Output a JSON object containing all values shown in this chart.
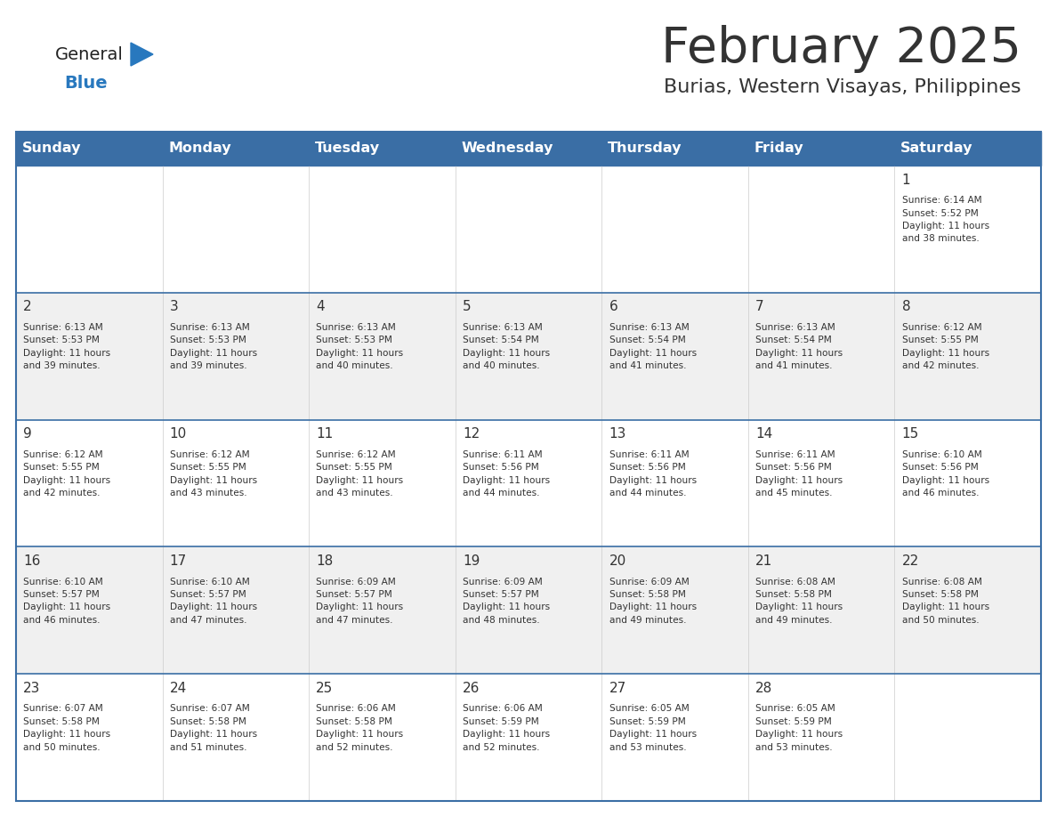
{
  "title": "February 2025",
  "subtitle": "Burias, Western Visayas, Philippines",
  "header_color": "#3A6EA5",
  "header_text_color": "#FFFFFF",
  "days_of_week": [
    "Sunday",
    "Monday",
    "Tuesday",
    "Wednesday",
    "Thursday",
    "Friday",
    "Saturday"
  ],
  "background_color": "#FFFFFF",
  "cell_alt_color": "#F0F0F0",
  "divider_color": "#3A6EA5",
  "text_color": "#333333",
  "logo_general_color": "#222222",
  "logo_blue_color": "#2878BE",
  "calendar": [
    [
      {
        "day": null,
        "info": null
      },
      {
        "day": null,
        "info": null
      },
      {
        "day": null,
        "info": null
      },
      {
        "day": null,
        "info": null
      },
      {
        "day": null,
        "info": null
      },
      {
        "day": null,
        "info": null
      },
      {
        "day": 1,
        "info": "Sunrise: 6:14 AM\nSunset: 5:52 PM\nDaylight: 11 hours\nand 38 minutes."
      }
    ],
    [
      {
        "day": 2,
        "info": "Sunrise: 6:13 AM\nSunset: 5:53 PM\nDaylight: 11 hours\nand 39 minutes."
      },
      {
        "day": 3,
        "info": "Sunrise: 6:13 AM\nSunset: 5:53 PM\nDaylight: 11 hours\nand 39 minutes."
      },
      {
        "day": 4,
        "info": "Sunrise: 6:13 AM\nSunset: 5:53 PM\nDaylight: 11 hours\nand 40 minutes."
      },
      {
        "day": 5,
        "info": "Sunrise: 6:13 AM\nSunset: 5:54 PM\nDaylight: 11 hours\nand 40 minutes."
      },
      {
        "day": 6,
        "info": "Sunrise: 6:13 AM\nSunset: 5:54 PM\nDaylight: 11 hours\nand 41 minutes."
      },
      {
        "day": 7,
        "info": "Sunrise: 6:13 AM\nSunset: 5:54 PM\nDaylight: 11 hours\nand 41 minutes."
      },
      {
        "day": 8,
        "info": "Sunrise: 6:12 AM\nSunset: 5:55 PM\nDaylight: 11 hours\nand 42 minutes."
      }
    ],
    [
      {
        "day": 9,
        "info": "Sunrise: 6:12 AM\nSunset: 5:55 PM\nDaylight: 11 hours\nand 42 minutes."
      },
      {
        "day": 10,
        "info": "Sunrise: 6:12 AM\nSunset: 5:55 PM\nDaylight: 11 hours\nand 43 minutes."
      },
      {
        "day": 11,
        "info": "Sunrise: 6:12 AM\nSunset: 5:55 PM\nDaylight: 11 hours\nand 43 minutes."
      },
      {
        "day": 12,
        "info": "Sunrise: 6:11 AM\nSunset: 5:56 PM\nDaylight: 11 hours\nand 44 minutes."
      },
      {
        "day": 13,
        "info": "Sunrise: 6:11 AM\nSunset: 5:56 PM\nDaylight: 11 hours\nand 44 minutes."
      },
      {
        "day": 14,
        "info": "Sunrise: 6:11 AM\nSunset: 5:56 PM\nDaylight: 11 hours\nand 45 minutes."
      },
      {
        "day": 15,
        "info": "Sunrise: 6:10 AM\nSunset: 5:56 PM\nDaylight: 11 hours\nand 46 minutes."
      }
    ],
    [
      {
        "day": 16,
        "info": "Sunrise: 6:10 AM\nSunset: 5:57 PM\nDaylight: 11 hours\nand 46 minutes."
      },
      {
        "day": 17,
        "info": "Sunrise: 6:10 AM\nSunset: 5:57 PM\nDaylight: 11 hours\nand 47 minutes."
      },
      {
        "day": 18,
        "info": "Sunrise: 6:09 AM\nSunset: 5:57 PM\nDaylight: 11 hours\nand 47 minutes."
      },
      {
        "day": 19,
        "info": "Sunrise: 6:09 AM\nSunset: 5:57 PM\nDaylight: 11 hours\nand 48 minutes."
      },
      {
        "day": 20,
        "info": "Sunrise: 6:09 AM\nSunset: 5:58 PM\nDaylight: 11 hours\nand 49 minutes."
      },
      {
        "day": 21,
        "info": "Sunrise: 6:08 AM\nSunset: 5:58 PM\nDaylight: 11 hours\nand 49 minutes."
      },
      {
        "day": 22,
        "info": "Sunrise: 6:08 AM\nSunset: 5:58 PM\nDaylight: 11 hours\nand 50 minutes."
      }
    ],
    [
      {
        "day": 23,
        "info": "Sunrise: 6:07 AM\nSunset: 5:58 PM\nDaylight: 11 hours\nand 50 minutes."
      },
      {
        "day": 24,
        "info": "Sunrise: 6:07 AM\nSunset: 5:58 PM\nDaylight: 11 hours\nand 51 minutes."
      },
      {
        "day": 25,
        "info": "Sunrise: 6:06 AM\nSunset: 5:58 PM\nDaylight: 11 hours\nand 52 minutes."
      },
      {
        "day": 26,
        "info": "Sunrise: 6:06 AM\nSunset: 5:59 PM\nDaylight: 11 hours\nand 52 minutes."
      },
      {
        "day": 27,
        "info": "Sunrise: 6:05 AM\nSunset: 5:59 PM\nDaylight: 11 hours\nand 53 minutes."
      },
      {
        "day": 28,
        "info": "Sunrise: 6:05 AM\nSunset: 5:59 PM\nDaylight: 11 hours\nand 53 minutes."
      },
      {
        "day": null,
        "info": null
      }
    ]
  ]
}
